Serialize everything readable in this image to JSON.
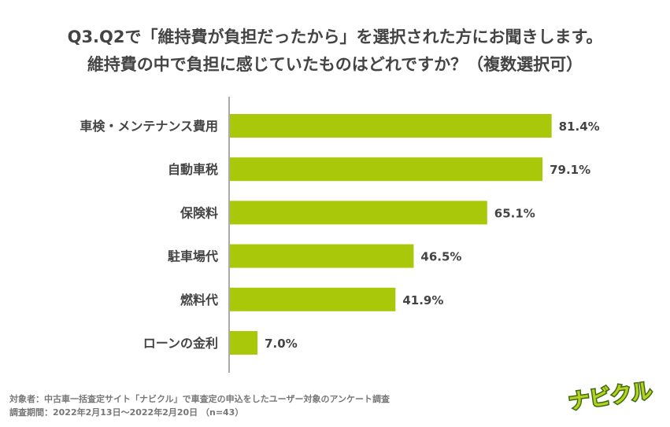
{
  "title": {
    "line1": "Q3.Q2で「維持費が負担だったから」を選択された方にお聞きします。",
    "line2": "維持費の中で負担に感じていたものはどれですか？（複数選択可）"
  },
  "footer": {
    "line1": "対象者：中古車一括査定サイト「ナビクル」で車査定の申込をしたユーザー対象のアンケート調査",
    "line2": "調査期間：2022年2月13日～2022年2月20日 （n=43）"
  },
  "logo": {
    "text": "ナビクル"
  },
  "colors": {
    "bar": "#aac80a",
    "axis": "#aaaaaa",
    "text": "#444444",
    "logo_fill": "#b6d21e",
    "logo_outline": "#3d6b12"
  },
  "chart_data": {
    "type": "bar",
    "orientation": "horizontal",
    "categories": [
      "車検・メンテナンス費用",
      "自動車税",
      "保険料",
      "駐車場代",
      "燃料代",
      "ローンの金利"
    ],
    "values": [
      81.4,
      79.1,
      65.1,
      46.5,
      41.9,
      7.0
    ],
    "value_labels": [
      "81.4%",
      "79.1%",
      "65.1%",
      "46.5%",
      "41.9%",
      "7.0%"
    ],
    "unit": "%",
    "xlim": [
      0,
      100
    ],
    "grid": false,
    "legend": "none"
  }
}
